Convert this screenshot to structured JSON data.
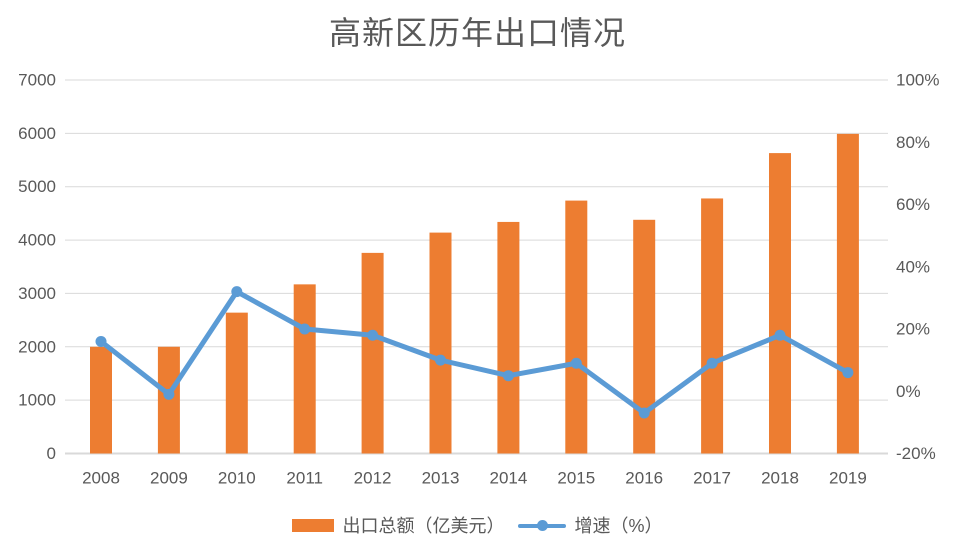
{
  "title": "高新区历年出口情况",
  "legend": {
    "bar_label": "出口总额（亿美元）",
    "line_label": "增速（%）"
  },
  "colors": {
    "bar": "#ED7D31",
    "line": "#5B9BD5",
    "grid": "#D9D9D9",
    "text": "#595959",
    "background": "#FFFFFF"
  },
  "chart_data": {
    "type": "bar",
    "subtype": "combo-bar-line-dual-axis",
    "title": "高新区历年出口情况",
    "categories": [
      "2008",
      "2009",
      "2010",
      "2011",
      "2012",
      "2013",
      "2014",
      "2015",
      "2016",
      "2017",
      "2018",
      "2019"
    ],
    "series": [
      {
        "name": "出口总额（亿美元）",
        "type": "bar",
        "axis": "left",
        "values": [
          2000,
          2000,
          2640,
          3170,
          3760,
          4140,
          4340,
          4740,
          4380,
          4780,
          5630,
          5990
        ]
      },
      {
        "name": "增速（%）",
        "type": "line",
        "axis": "right",
        "values": [
          16,
          -1,
          32,
          20,
          18,
          10,
          5,
          9,
          -7,
          9,
          18,
          6
        ]
      }
    ],
    "left_axis": {
      "min": 0,
      "max": 7000,
      "step": 1000,
      "tick_labels": [
        "0",
        "1000",
        "2000",
        "3000",
        "4000",
        "5000",
        "6000",
        "7000"
      ]
    },
    "right_axis": {
      "min": -20,
      "max": 100,
      "step": 20,
      "tick_labels": [
        "-20%",
        "0%",
        "20%",
        "40%",
        "60%",
        "80%",
        "100%"
      ]
    },
    "grid": true,
    "legend_position": "bottom"
  }
}
